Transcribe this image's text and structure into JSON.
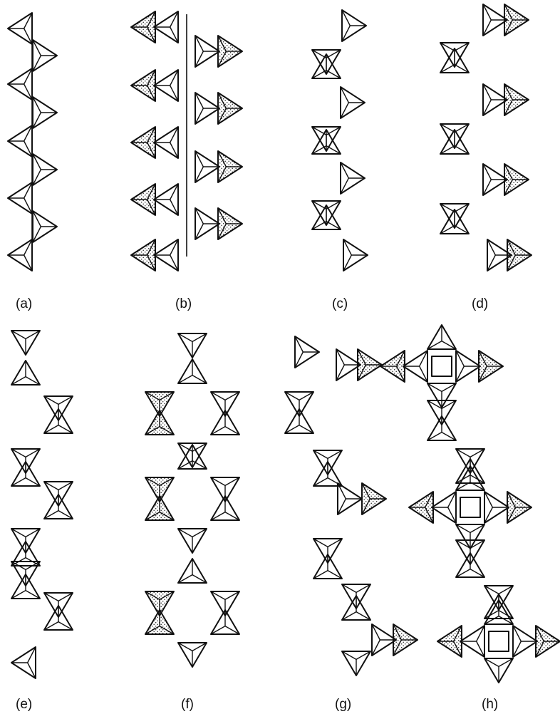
{
  "figure": {
    "panels": [
      {
        "id": "a",
        "label": "(a)"
      },
      {
        "id": "b",
        "label": "(b)"
      },
      {
        "id": "c",
        "label": "(c)"
      },
      {
        "id": "d",
        "label": "(d)"
      },
      {
        "id": "e",
        "label": "(e)"
      },
      {
        "id": "f",
        "label": "(f)"
      },
      {
        "id": "g",
        "label": "(g)"
      },
      {
        "id": "h",
        "label": "(h)"
      }
    ]
  }
}
